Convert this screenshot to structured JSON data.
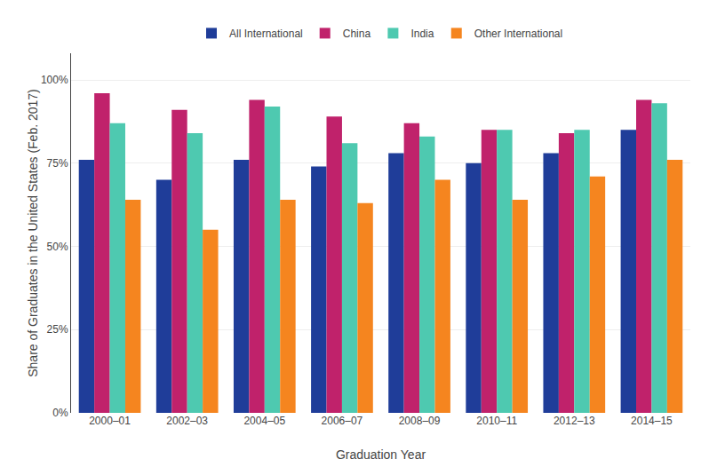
{
  "chart_data": {
    "type": "bar",
    "categories": [
      "2000–01",
      "2002–03",
      "2004–05",
      "2006–07",
      "2008–09",
      "2010–11",
      "2012–13",
      "2014–15"
    ],
    "series": [
      {
        "name": "All International",
        "color": "#1f3d99",
        "values": [
          76,
          70,
          76,
          74,
          78,
          75,
          78,
          85
        ]
      },
      {
        "name": "China",
        "color": "#c0226b",
        "values": [
          96,
          91,
          94,
          89,
          87,
          85,
          84,
          94
        ]
      },
      {
        "name": "India",
        "color": "#4ec9b0",
        "values": [
          87,
          84,
          92,
          81,
          83,
          85,
          85,
          93
        ]
      },
      {
        "name": "Other International",
        "color": "#f5851f",
        "values": [
          64,
          55,
          64,
          63,
          70,
          64,
          71,
          76
        ]
      }
    ],
    "xlabel": "Graduation Year",
    "ylabel": "Share of Graduates in the United States (Feb. 2017)",
    "ylim": [
      0,
      108
    ],
    "yticks": [
      {
        "value": 0,
        "label": "0%"
      },
      {
        "value": 25,
        "label": "25%"
      },
      {
        "value": 50,
        "label": "50%"
      },
      {
        "value": 75,
        "label": "75%"
      },
      {
        "value": 100,
        "label": "100%"
      }
    ],
    "grid": true,
    "legend": "top"
  }
}
